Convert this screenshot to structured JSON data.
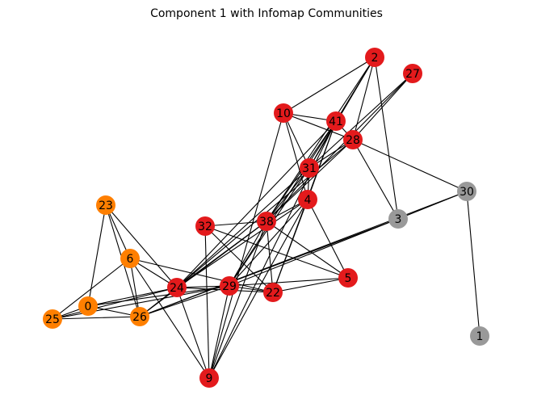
{
  "title": "Component 1 with Infomap Communities",
  "communities": {
    "red": {
      "color": "#e31a1c"
    },
    "orange": {
      "color": "#ff7f00"
    },
    "gray": {
      "color": "#999999"
    }
  },
  "nodes": [
    {
      "id": "2",
      "community": "red"
    },
    {
      "id": "27",
      "community": "red"
    },
    {
      "id": "10",
      "community": "red"
    },
    {
      "id": "41",
      "community": "red"
    },
    {
      "id": "28",
      "community": "red"
    },
    {
      "id": "31",
      "community": "red"
    },
    {
      "id": "4",
      "community": "red"
    },
    {
      "id": "38",
      "community": "red"
    },
    {
      "id": "32",
      "community": "red"
    },
    {
      "id": "24",
      "community": "red"
    },
    {
      "id": "29",
      "community": "red"
    },
    {
      "id": "22",
      "community": "red"
    },
    {
      "id": "5",
      "community": "red"
    },
    {
      "id": "9",
      "community": "red"
    },
    {
      "id": "23",
      "community": "orange"
    },
    {
      "id": "6",
      "community": "orange"
    },
    {
      "id": "0",
      "community": "orange"
    },
    {
      "id": "25",
      "community": "orange"
    },
    {
      "id": "26",
      "community": "orange"
    },
    {
      "id": "30",
      "community": "gray"
    },
    {
      "id": "3",
      "community": "gray"
    },
    {
      "id": "1",
      "community": "gray"
    }
  ],
  "edges": [
    [
      "2",
      "10"
    ],
    [
      "2",
      "41"
    ],
    [
      "2",
      "28"
    ],
    [
      "2",
      "3"
    ],
    [
      "2",
      "31"
    ],
    [
      "2",
      "38"
    ],
    [
      "27",
      "28"
    ],
    [
      "27",
      "31"
    ],
    [
      "27",
      "38"
    ],
    [
      "10",
      "41"
    ],
    [
      "10",
      "28"
    ],
    [
      "10",
      "4"
    ],
    [
      "10",
      "31"
    ],
    [
      "10",
      "9"
    ],
    [
      "41",
      "28"
    ],
    [
      "41",
      "31"
    ],
    [
      "41",
      "4"
    ],
    [
      "41",
      "38"
    ],
    [
      "41",
      "24"
    ],
    [
      "41",
      "29"
    ],
    [
      "41",
      "22"
    ],
    [
      "41",
      "9"
    ],
    [
      "28",
      "30"
    ],
    [
      "28",
      "3"
    ],
    [
      "28",
      "31"
    ],
    [
      "28",
      "38"
    ],
    [
      "28",
      "24"
    ],
    [
      "31",
      "4"
    ],
    [
      "31",
      "38"
    ],
    [
      "31",
      "24"
    ],
    [
      "31",
      "29"
    ],
    [
      "4",
      "38"
    ],
    [
      "4",
      "5"
    ],
    [
      "4",
      "22"
    ],
    [
      "4",
      "29"
    ],
    [
      "4",
      "24"
    ],
    [
      "4",
      "9"
    ],
    [
      "38",
      "32"
    ],
    [
      "38",
      "24"
    ],
    [
      "38",
      "29"
    ],
    [
      "38",
      "22"
    ],
    [
      "38",
      "5"
    ],
    [
      "38",
      "9"
    ],
    [
      "38",
      "26"
    ],
    [
      "32",
      "9"
    ],
    [
      "32",
      "22"
    ],
    [
      "32",
      "5"
    ],
    [
      "24",
      "29"
    ],
    [
      "24",
      "22"
    ],
    [
      "24",
      "0"
    ],
    [
      "24",
      "25"
    ],
    [
      "24",
      "6"
    ],
    [
      "24",
      "23"
    ],
    [
      "24",
      "26"
    ],
    [
      "24",
      "9"
    ],
    [
      "29",
      "22"
    ],
    [
      "29",
      "5"
    ],
    [
      "29",
      "9"
    ],
    [
      "29",
      "0"
    ],
    [
      "29",
      "25"
    ],
    [
      "29",
      "26"
    ],
    [
      "29",
      "3"
    ],
    [
      "22",
      "5"
    ],
    [
      "22",
      "6"
    ],
    [
      "26",
      "3"
    ],
    [
      "26",
      "30"
    ],
    [
      "23",
      "6"
    ],
    [
      "23",
      "0"
    ],
    [
      "23",
      "26"
    ],
    [
      "6",
      "25"
    ],
    [
      "6",
      "26"
    ],
    [
      "6",
      "9"
    ],
    [
      "0",
      "25"
    ],
    [
      "0",
      "26"
    ],
    [
      "25",
      "26"
    ],
    [
      "30",
      "1"
    ],
    [
      "3",
      "30"
    ]
  ]
}
